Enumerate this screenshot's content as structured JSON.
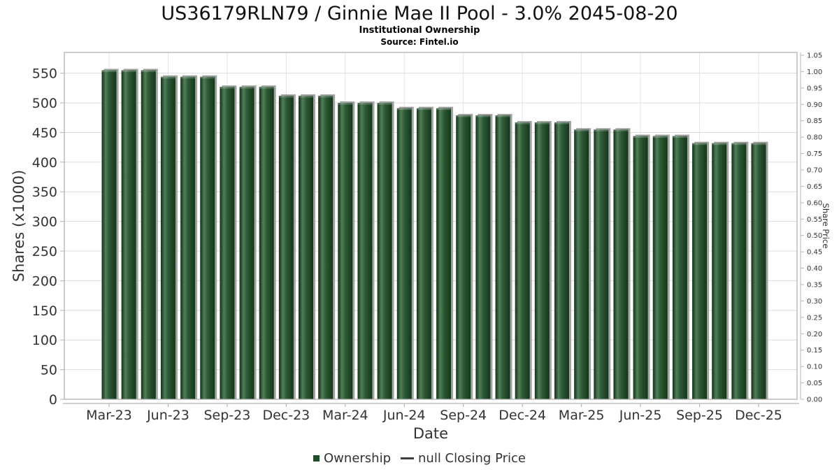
{
  "chart_data": {
    "type": "bar",
    "title": "US36179RLN79 / Ginnie Mae II Pool - 3.0% 2045-08-20",
    "subtitle": "Institutional Ownership",
    "source": "Source: Fintel.io",
    "xlabel": "Date",
    "ylabel": "Shares (x1000)",
    "ylabel_right": "Share Price",
    "categories": [
      "Mar-23",
      "Apr-23",
      "May-23",
      "Jun-23",
      "Jul-23",
      "Aug-23",
      "Sep-23",
      "Oct-23",
      "Nov-23",
      "Dec-23",
      "Jan-24",
      "Feb-24",
      "Mar-24",
      "Apr-24",
      "May-24",
      "Jun-24",
      "Jul-24",
      "Aug-24",
      "Sep-24",
      "Oct-24",
      "Nov-24",
      "Dec-24",
      "Jan-25",
      "Feb-25",
      "Mar-25",
      "Apr-25",
      "May-25",
      "Jun-25",
      "Jul-25",
      "Aug-25",
      "Sep-25",
      "Oct-25",
      "Nov-25",
      "Dec-25"
    ],
    "series": [
      {
        "name": "Ownership",
        "type": "column",
        "color": "#2d5a35",
        "values": [
          555,
          555,
          555,
          544,
          544,
          544,
          527,
          527,
          527,
          512,
          512,
          512,
          500,
          500,
          500,
          491,
          491,
          491,
          479,
          479,
          479,
          467,
          467,
          467,
          455,
          455,
          455,
          444,
          444,
          444,
          432,
          432,
          432,
          432
        ]
      },
      {
        "name": "null Closing Price",
        "type": "line",
        "color": "#3d3d3d",
        "values": null
      }
    ],
    "x_tick_every": 3,
    "x_tick_labels": [
      "Mar-23",
      "Jun-23",
      "Sep-23",
      "Dec-23",
      "Mar-24",
      "Jun-24",
      "Sep-24",
      "Dec-24",
      "Mar-25",
      "Jun-25",
      "Sep-25",
      "Dec-25"
    ],
    "ylim": [
      0,
      585
    ],
    "yticks": [
      0,
      50,
      100,
      150,
      200,
      250,
      300,
      350,
      400,
      450,
      500,
      550
    ],
    "ylim_right": [
      0,
      1.0585
    ],
    "yticks_right": [
      "0.00",
      "0.05",
      "0.10",
      "0.15",
      "0.20",
      "0.25",
      "0.30",
      "0.35",
      "0.40",
      "0.45",
      "0.50",
      "0.55",
      "0.60",
      "0.65",
      "0.70",
      "0.75",
      "0.80",
      "0.85",
      "0.90",
      "0.95",
      "1.00",
      "1.05"
    ],
    "grid": true,
    "legend_position": "bottom",
    "colors": {
      "bar_dark": "#16351b",
      "bar_edge": "#1d4424",
      "bar_light": "#517e57",
      "bar_mid": "#2e5836",
      "shadow": "#a3a3a3",
      "grid_h": "#dcdcdc",
      "grid_v": "#e4e4e4",
      "border": "#ababab",
      "axis": "#b5b5b5",
      "tick_text": "#333333"
    }
  }
}
